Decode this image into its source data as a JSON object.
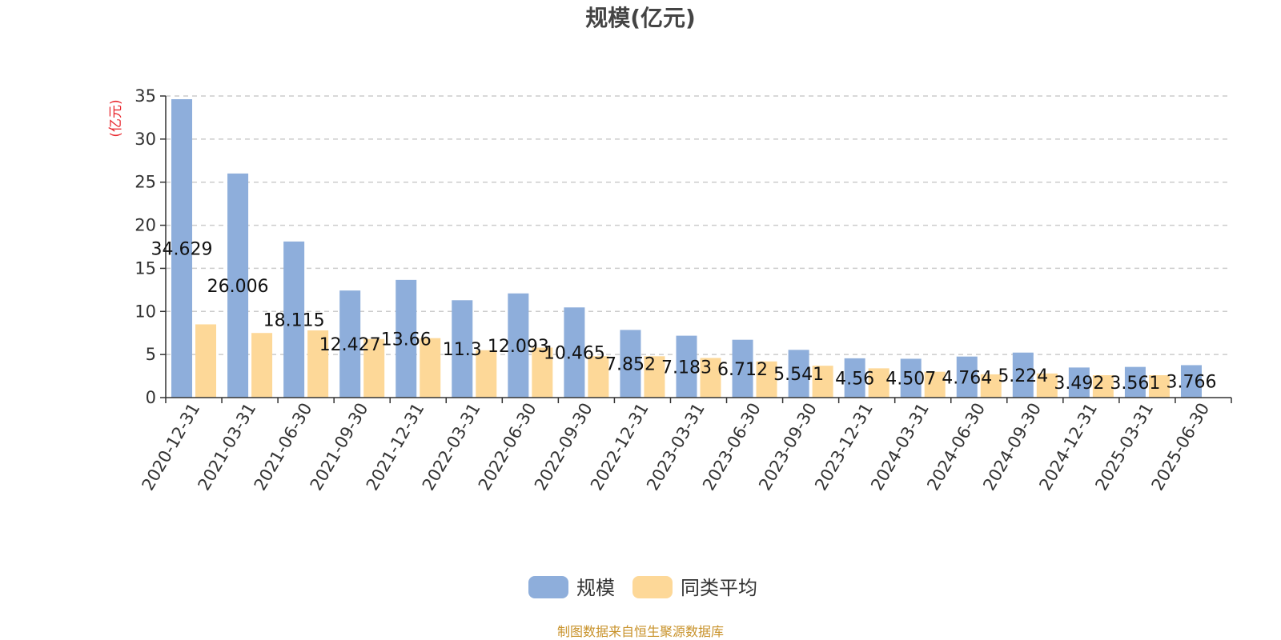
{
  "chart_data": {
    "type": "bar",
    "title": "规模(亿元)",
    "unit_label": "(亿元)",
    "categories": [
      "2020-12-31",
      "2021-03-31",
      "2021-06-30",
      "2021-09-30",
      "2021-12-31",
      "2022-03-31",
      "2022-06-30",
      "2022-09-30",
      "2022-12-31",
      "2023-03-31",
      "2023-06-30",
      "2023-09-30",
      "2023-12-31",
      "2024-03-31",
      "2024-06-30",
      "2024-09-30",
      "2024-12-31",
      "2025-03-31",
      "2025-06-30"
    ],
    "series": [
      {
        "name": "规模",
        "color": "#8eaedb",
        "values": [
          34.629,
          26.006,
          18.115,
          12.427,
          13.66,
          11.3,
          12.093,
          10.465,
          7.852,
          7.183,
          6.712,
          5.541,
          4.56,
          4.507,
          4.764,
          5.224,
          3.492,
          3.561,
          3.766
        ],
        "labels": [
          "34.629",
          "26.006",
          "18.115",
          "12.427",
          "13.66",
          "11.3",
          "12.093",
          "10.465",
          "7.852",
          "7.183",
          "6.712",
          "5.541",
          "4.56",
          "4.507",
          "4.764",
          "5.224",
          "3.492",
          "3.561",
          "3.766"
        ]
      },
      {
        "name": "同类平均",
        "color": "#fdd898",
        "values": [
          8.5,
          7.5,
          7.8,
          6.8,
          6.9,
          5.5,
          5.8,
          4.8,
          4.8,
          4.6,
          4.2,
          3.7,
          3.4,
          3.0,
          2.7,
          2.8,
          2.6,
          2.6,
          null
        ]
      }
    ],
    "ylim": [
      0,
      35
    ],
    "yticks": [
      0,
      5,
      10,
      15,
      20,
      25,
      30,
      35
    ],
    "grid": true,
    "legend_position": "bottom"
  },
  "source_text": "制图数据来自恒生聚源数据库"
}
